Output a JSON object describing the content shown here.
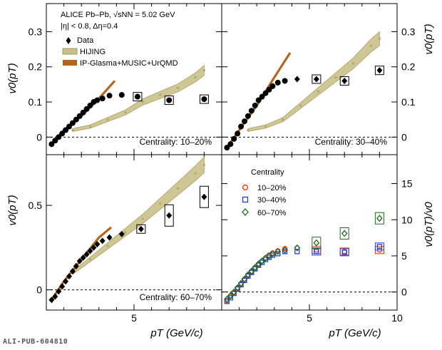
{
  "footer_id": "ALI-PUB-604810",
  "colors": {
    "data": "#000000",
    "hijing": "#b0a76c",
    "ipglasma": "#b5651d",
    "c1020": "#ff2a00",
    "c3040": "#1f3fe0",
    "c6070": "#1e6b1e"
  },
  "legend": {
    "experiment": "ALICE Pb–Pb, √sNN = 5.02 GeV",
    "cuts": "|η| < 0.8, Δη=0.4",
    "data": "Data",
    "hijing": "HIJING",
    "model": "IP-Glasma+MUSIC+UrQMD"
  },
  "centrality_legend": {
    "title": "Centrality",
    "entries": [
      "10–20%",
      "30–40%",
      "60–70%"
    ]
  },
  "axes": {
    "ylabel_left": "v0(pT)",
    "ylabel_right_top": "v0(pT)",
    "ylabel_right_bottom": "v0(pT)/v0",
    "xlabel": "pT (GeV/c)"
  },
  "chart_data": [
    {
      "type": "scatter",
      "panel": "top-left",
      "annotation": "Centrality: 10–20%",
      "xlim": [
        0,
        10
      ],
      "ylim": [
        -0.05,
        0.38
      ],
      "yticks": [
        0,
        0.1,
        0.2,
        0.3
      ],
      "ytick_labels": [
        "0",
        "0.1",
        "0.2",
        "0.3"
      ],
      "series": [
        {
          "name": "Data",
          "x": [
            0.3,
            0.5,
            0.7,
            0.9,
            1.1,
            1.3,
            1.5,
            1.7,
            1.9,
            2.1,
            2.3,
            2.5,
            2.7,
            2.9,
            3.2,
            3.6,
            4.3,
            5.2,
            7.0,
            9.0
          ],
          "y": [
            -0.02,
            -0.01,
            0.0,
            0.01,
            0.02,
            0.03,
            0.04,
            0.05,
            0.06,
            0.07,
            0.08,
            0.09,
            0.1,
            0.105,
            0.11,
            0.118,
            0.12,
            0.115,
            0.105,
            0.108
          ]
        },
        {
          "name": "HIJING",
          "x": [
            1.5,
            2.5,
            3.5,
            4.5,
            5.5,
            6.5,
            7.5,
            8.5,
            9.0
          ],
          "y": [
            0.02,
            0.03,
            0.05,
            0.07,
            0.1,
            0.12,
            0.14,
            0.17,
            0.19
          ]
        },
        {
          "name": "IP-Glasma+MUSIC+UrQMD",
          "x": [
            0.3,
            1.0,
            2.0,
            3.0,
            3.9
          ],
          "y": [
            -0.02,
            0.02,
            0.06,
            0.11,
            0.16
          ]
        }
      ]
    },
    {
      "type": "scatter",
      "panel": "top-right",
      "annotation": "Centrality: 30–40%",
      "xlim": [
        0,
        10
      ],
      "ylim": [
        -0.05,
        0.38
      ],
      "yticks": [
        0,
        0.1,
        0.2,
        0.3
      ],
      "ytick_labels": [
        "0",
        "0.1",
        "0.2",
        "0.3"
      ],
      "series": [
        {
          "name": "Data",
          "x": [
            0.3,
            0.5,
            0.7,
            0.9,
            1.1,
            1.3,
            1.5,
            1.7,
            1.9,
            2.1,
            2.3,
            2.5,
            2.7,
            2.9,
            3.2,
            3.6,
            4.3,
            5.4,
            7.0,
            9.0
          ],
          "y": [
            -0.03,
            -0.02,
            -0.005,
            0.01,
            0.03,
            0.045,
            0.06,
            0.075,
            0.09,
            0.105,
            0.115,
            0.125,
            0.135,
            0.145,
            0.155,
            0.16,
            0.165,
            0.165,
            0.16,
            0.19
          ]
        },
        {
          "name": "HIJING",
          "x": [
            1.5,
            2.5,
            3.5,
            4.5,
            5.5,
            6.5,
            7.5,
            8.5,
            9.0
          ],
          "y": [
            0.02,
            0.03,
            0.05,
            0.09,
            0.13,
            0.17,
            0.21,
            0.26,
            0.28
          ]
        },
        {
          "name": "IP-Glasma+MUSIC+UrQMD",
          "x": [
            0.3,
            1.0,
            2.0,
            3.0,
            3.9
          ],
          "y": [
            -0.03,
            0.02,
            0.09,
            0.17,
            0.24
          ]
        }
      ]
    },
    {
      "type": "scatter",
      "panel": "bottom-left",
      "annotation": "Centrality: 60–70%",
      "xlim": [
        0,
        10
      ],
      "ylim": [
        -0.12,
        0.8
      ],
      "yticks": [
        0,
        0.5
      ],
      "ytick_labels": [
        "0",
        "0.5"
      ],
      "series": [
        {
          "name": "Data",
          "x": [
            0.3,
            0.5,
            0.7,
            0.9,
            1.1,
            1.3,
            1.5,
            1.7,
            1.9,
            2.1,
            2.3,
            2.5,
            2.7,
            2.9,
            3.2,
            3.6,
            4.3,
            5.4,
            7.0,
            9.0
          ],
          "y": [
            -0.06,
            -0.04,
            -0.01,
            0.02,
            0.05,
            0.08,
            0.11,
            0.14,
            0.17,
            0.19,
            0.21,
            0.23,
            0.25,
            0.27,
            0.29,
            0.31,
            0.33,
            0.36,
            0.44,
            0.55
          ]
        },
        {
          "name": "HIJING",
          "x": [
            1.5,
            2.5,
            3.5,
            4.5,
            5.5,
            6.5,
            7.5,
            8.5,
            9.0
          ],
          "y": [
            0.1,
            0.18,
            0.26,
            0.34,
            0.42,
            0.51,
            0.6,
            0.69,
            0.74
          ]
        },
        {
          "name": "IP-Glasma+MUSIC+UrQMD",
          "x": [
            0.3,
            1.0,
            2.0,
            3.0,
            3.7
          ],
          "y": [
            -0.06,
            0.05,
            0.18,
            0.31,
            0.37
          ]
        }
      ]
    },
    {
      "type": "scatter",
      "panel": "bottom-right",
      "xlim": [
        0,
        10
      ],
      "ylim": [
        -2.5,
        19
      ],
      "yticks": [
        0,
        5,
        10,
        15
      ],
      "ytick_labels": [
        "0",
        "5",
        "10",
        "15"
      ],
      "xticks": [
        5,
        10
      ],
      "xtick_labels": [
        "5",
        "10"
      ],
      "series": [
        {
          "name": "10–20%",
          "x": [
            0.3,
            0.5,
            0.7,
            0.9,
            1.1,
            1.3,
            1.5,
            1.7,
            1.9,
            2.1,
            2.3,
            2.5,
            2.7,
            2.9,
            3.2,
            3.6,
            4.3,
            5.4,
            7.0,
            9.0
          ],
          "y": [
            -1.2,
            -0.6,
            -0.1,
            0.5,
            1.1,
            1.7,
            2.3,
            2.8,
            3.3,
            3.8,
            4.3,
            4.7,
            5.1,
            5.4,
            5.7,
            6.0,
            6.1,
            5.8,
            5.6,
            5.8
          ]
        },
        {
          "name": "30–40%",
          "x": [
            0.3,
            0.5,
            0.7,
            0.9,
            1.1,
            1.3,
            1.5,
            1.7,
            1.9,
            2.1,
            2.3,
            2.5,
            2.7,
            2.9,
            3.2,
            3.6,
            4.3,
            5.4,
            7.0,
            9.0
          ],
          "y": [
            -1.3,
            -0.8,
            -0.2,
            0.4,
            1.0,
            1.6,
            2.2,
            2.7,
            3.2,
            3.7,
            4.1,
            4.5,
            4.8,
            5.1,
            5.3,
            5.6,
            5.6,
            5.6,
            5.5,
            6.3
          ]
        },
        {
          "name": "60–70%",
          "x": [
            0.3,
            0.5,
            0.7,
            0.9,
            1.1,
            1.3,
            1.5,
            1.7,
            1.9,
            2.1,
            2.3,
            2.5,
            2.7,
            2.9,
            3.2,
            3.6,
            4.3,
            5.4,
            7.0,
            9.0
          ],
          "y": [
            -1.0,
            -0.5,
            0.0,
            0.6,
            1.2,
            1.8,
            2.4,
            2.9,
            3.4,
            3.9,
            4.3,
            4.7,
            5.0,
            5.3,
            5.6,
            5.8,
            6.1,
            6.8,
            8.1,
            10.2
          ]
        }
      ]
    }
  ]
}
